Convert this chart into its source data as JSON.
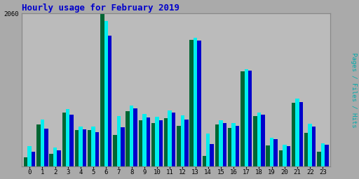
{
  "title": "Hourly usage for February 2019",
  "hours": [
    0,
    1,
    2,
    3,
    4,
    5,
    6,
    7,
    8,
    9,
    10,
    11,
    12,
    13,
    14,
    15,
    16,
    17,
    18,
    19,
    20,
    21,
    22,
    23
  ],
  "pages": [
    120,
    560,
    170,
    720,
    490,
    490,
    2060,
    420,
    740,
    620,
    580,
    650,
    550,
    1700,
    140,
    560,
    520,
    1280,
    680,
    280,
    220,
    860,
    450,
    200
  ],
  "files": [
    270,
    630,
    250,
    770,
    540,
    540,
    1960,
    680,
    820,
    710,
    670,
    750,
    690,
    1730,
    440,
    620,
    580,
    1310,
    720,
    390,
    290,
    910,
    570,
    310
  ],
  "hits": [
    200,
    510,
    220,
    700,
    500,
    460,
    1760,
    530,
    780,
    660,
    620,
    720,
    630,
    1690,
    300,
    580,
    550,
    1290,
    700,
    370,
    270,
    870,
    540,
    290
  ],
  "pages_color": "#006633",
  "files_color": "#00eeee",
  "hits_color": "#0000cc",
  "bg_color": "#aaaaaa",
  "plot_bg_color": "#bbbbbb",
  "title_color": "#0000cc",
  "ylim": [
    0,
    2060
  ],
  "ytick_val": 2060,
  "grid_color": "#999999",
  "border_color": "#888888",
  "right_label_parts": [
    [
      "Pages",
      "#00aaaa"
    ],
    [
      " / ",
      "#888888"
    ],
    [
      "Files",
      "#00cc44"
    ],
    [
      " / ",
      "#888888"
    ],
    [
      "Hits",
      "#0000cc"
    ]
  ]
}
